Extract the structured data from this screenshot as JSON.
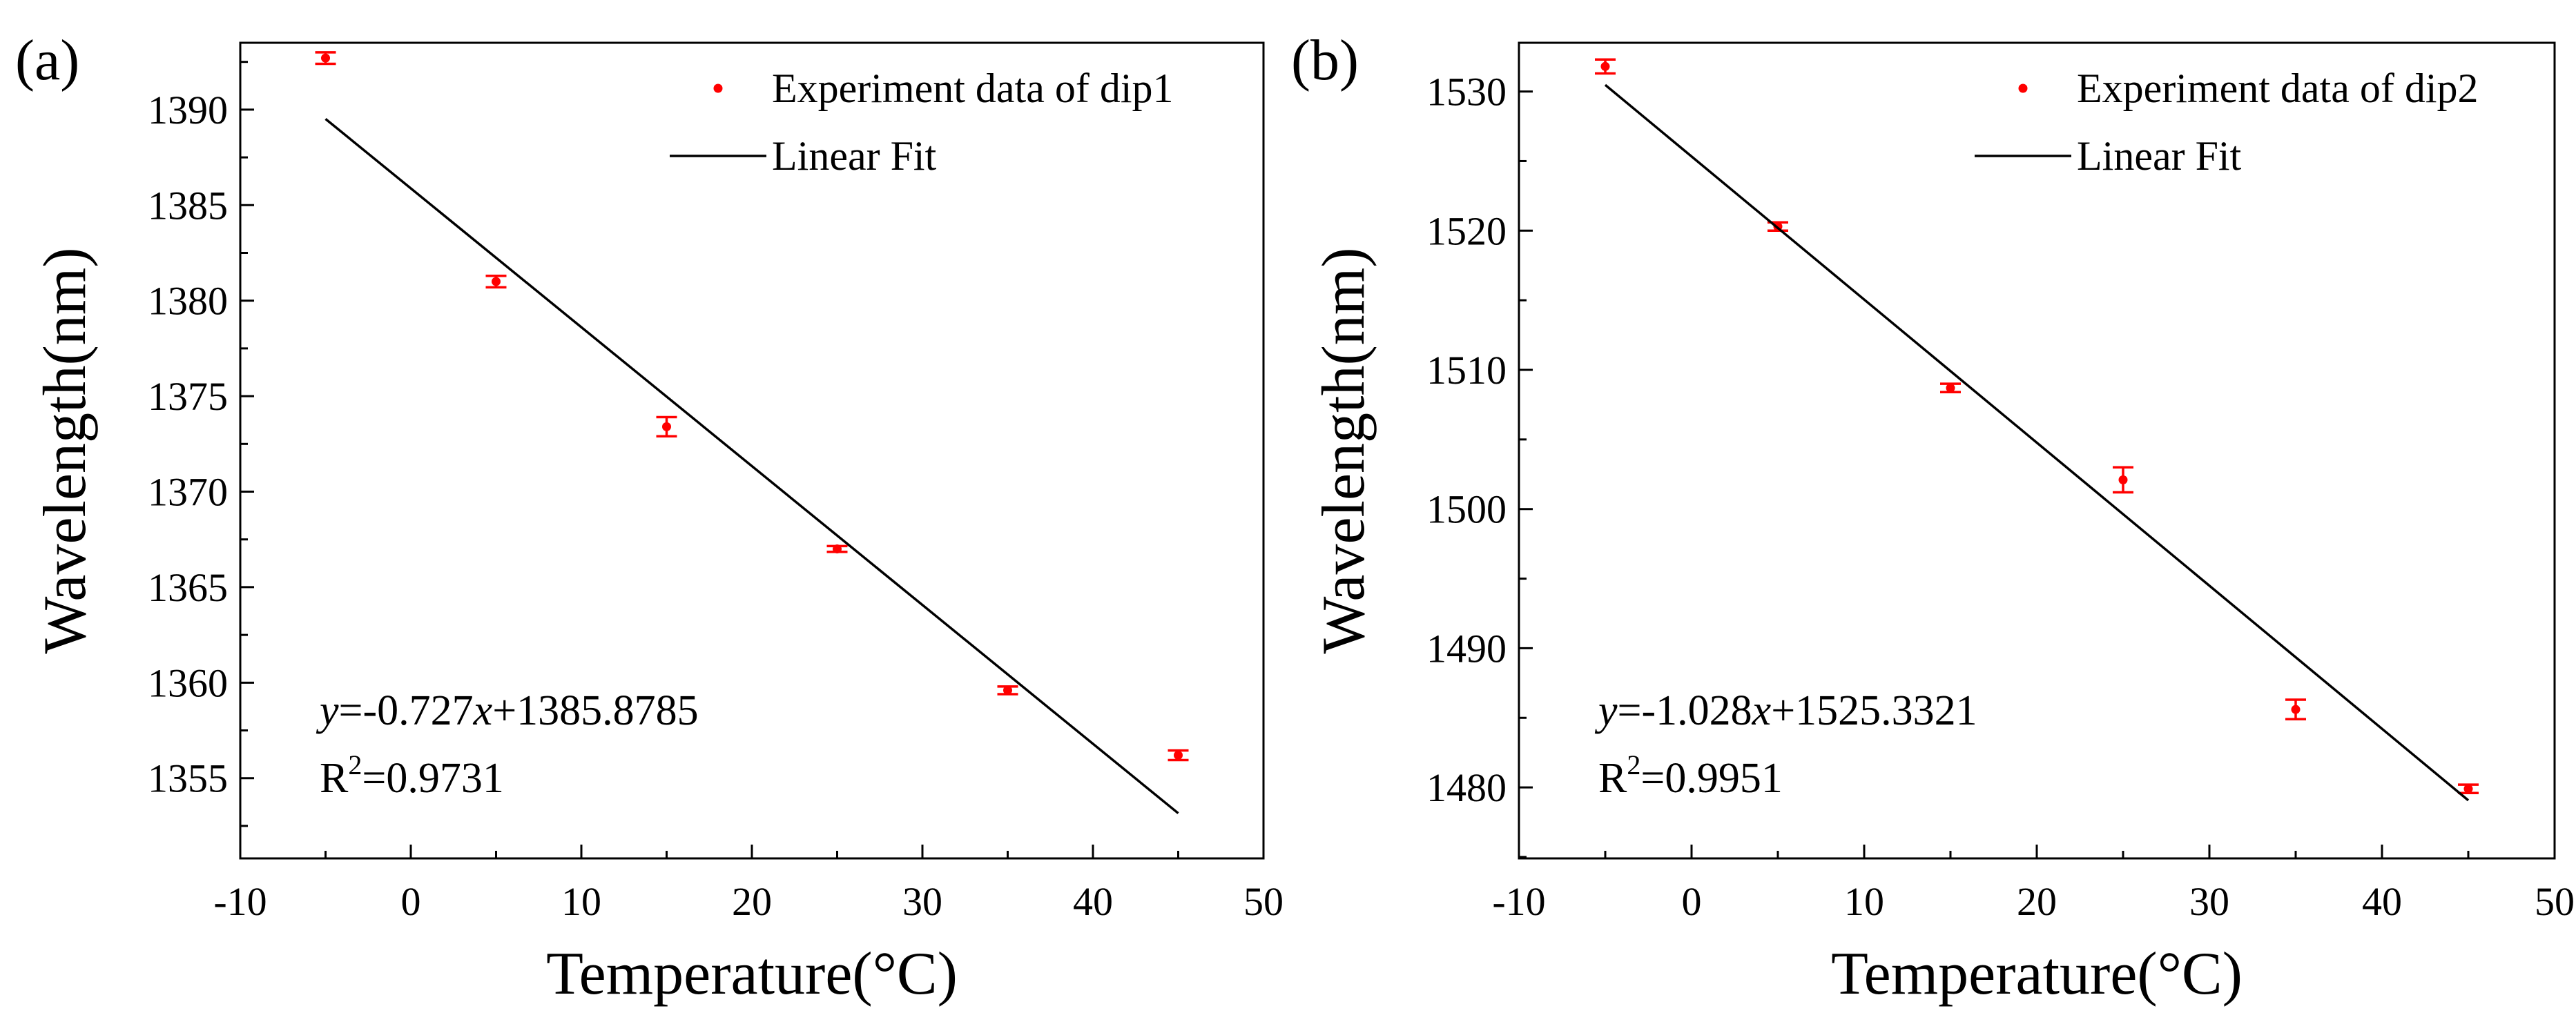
{
  "figure": {
    "panels_count": 2
  },
  "chart_data": [
    {
      "panel_label": "(a)",
      "type": "scatter",
      "title": "",
      "xlabel": "Temperature(°C)",
      "ylabel": "Wavelength(nm)",
      "xlim": [
        -10,
        50
      ],
      "ylim": [
        1350.8,
        1393.5
      ],
      "x_ticks": [
        -10,
        0,
        10,
        20,
        30,
        40,
        50
      ],
      "y_ticks": [
        1355,
        1360,
        1365,
        1370,
        1375,
        1380,
        1385,
        1390
      ],
      "series": [
        {
          "name": "Experiment data of dip1",
          "kind": "points",
          "color": "#ff0000",
          "x": [
            -5,
            5,
            15,
            25,
            35,
            45
          ],
          "y": [
            1392.7,
            1381.0,
            1373.4,
            1367.0,
            1359.6,
            1356.2
          ],
          "yerr": [
            0.3,
            0.3,
            0.5,
            0.15,
            0.2,
            0.25
          ]
        },
        {
          "name": "Linear Fit",
          "kind": "line",
          "color": "#000000",
          "x": [
            -5,
            45
          ],
          "slope": -0.727,
          "intercept": 1385.8785
        }
      ],
      "annotation": {
        "eq_prefix": "y",
        "eq_mid": "=-0.727",
        "eq_var": "x",
        "eq_suffix": "+1385.8785",
        "r2_base": "R",
        "r2_sup": "2",
        "r2_value": "=0.9731"
      },
      "legend_position": "top-right"
    },
    {
      "panel_label": "(b)",
      "type": "scatter",
      "title": "",
      "xlabel": "Temperature(°C)",
      "ylabel": "Wavelength(nm)",
      "xlim": [
        -10,
        50
      ],
      "ylim": [
        1474.9,
        1533.5
      ],
      "x_ticks": [
        -10,
        0,
        10,
        20,
        30,
        40,
        50
      ],
      "y_ticks": [
        1480,
        1490,
        1500,
        1510,
        1520,
        1530
      ],
      "series": [
        {
          "name": "Experiment data of dip2",
          "kind": "points",
          "color": "#ff0000",
          "x": [
            -5,
            5,
            15,
            25,
            35,
            45
          ],
          "y": [
            1531.8,
            1520.3,
            1508.7,
            1502.1,
            1485.6,
            1479.9
          ],
          "yerr": [
            0.5,
            0.3,
            0.3,
            0.9,
            0.7,
            0.3
          ]
        },
        {
          "name": "Linear Fit",
          "kind": "line",
          "color": "#000000",
          "x": [
            -5,
            45
          ],
          "slope": -1.028,
          "intercept": 1525.3321
        }
      ],
      "annotation": {
        "eq_prefix": "y",
        "eq_mid": "=-1.028",
        "eq_var": "x",
        "eq_suffix": "+1525.3321",
        "r2_base": "R",
        "r2_sup": "2",
        "r2_value": "=0.9951"
      },
      "legend_position": "top-right"
    }
  ]
}
